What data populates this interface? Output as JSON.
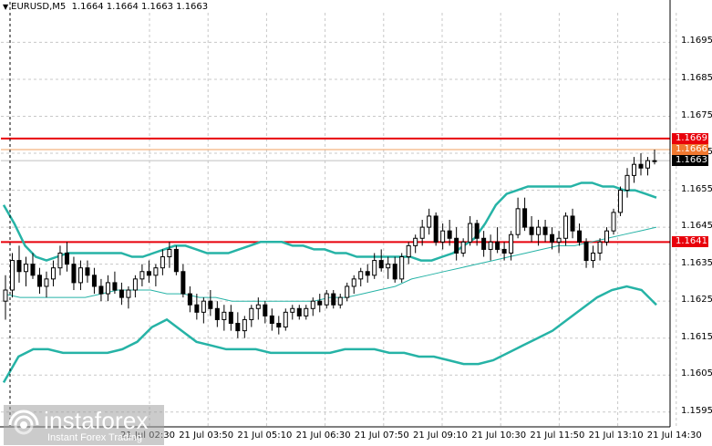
{
  "symbol": {
    "ticker": "EURUSD,M5",
    "ohlc": "1.1664 1.1664 1.1663 1.1663"
  },
  "price_axis": {
    "ticks": [
      "1.1695",
      "1.1685",
      "1.1675",
      "1.1665",
      "1.1655",
      "1.1645",
      "1.1635",
      "1.1625",
      "1.1615",
      "1.1605",
      "1.1595"
    ]
  },
  "time_axis": {
    "labels": [
      "21 Jul 02:30",
      "21 Jul 03:50",
      "21 Jul 05:10",
      "21 Jul 06:30",
      "21 Jul 07:50",
      "21 Jul 09:10",
      "21 Jul 10:30",
      "21 Jul 11:50",
      "21 Jul 13:10",
      "21 Jul 14:30"
    ]
  },
  "levels": [
    {
      "price": "1.1669",
      "color": "#e8000b",
      "label_bg": "#e8000b",
      "label_fg": "#ffffff"
    },
    {
      "price": "1.1666",
      "color": "#f0a060",
      "label_bg": "#f07830",
      "label_fg": "#ffffff"
    },
    {
      "price": "1.1663",
      "color": "#c0c0c0",
      "label_bg": "#000000",
      "label_fg": "#ffffff"
    },
    {
      "price": "1.1641",
      "color": "#e8000b",
      "label_bg": "#e8000b",
      "label_fg": "#ffffff"
    }
  ],
  "colors": {
    "candle": "#000000",
    "bollinger": "#26b3a6",
    "grid": "#c8c8c8"
  },
  "watermark": {
    "brand": "instaforex",
    "tagline": "Instant Forex Trading"
  },
  "chart_data": {
    "type": "candlestick",
    "symbol": "EURUSD",
    "timeframe": "M5",
    "y_range": [
      1.1591,
      1.1703
    ],
    "indicators": [
      "Bollinger Bands"
    ],
    "grid": true,
    "candles": [
      [
        1.1625,
        1.1632,
        1.162,
        1.1628
      ],
      [
        1.1628,
        1.1638,
        1.1626,
        1.1636
      ],
      [
        1.1636,
        1.164,
        1.163,
        1.1633
      ],
      [
        1.1633,
        1.1637,
        1.1629,
        1.1635
      ],
      [
        1.1635,
        1.1638,
        1.1631,
        1.1632
      ],
      [
        1.1632,
        1.1634,
        1.1627,
        1.1629
      ],
      [
        1.1629,
        1.1633,
        1.1626,
        1.1631
      ],
      [
        1.1631,
        1.1636,
        1.1629,
        1.1634
      ],
      [
        1.1634,
        1.164,
        1.1632,
        1.1638
      ],
      [
        1.1638,
        1.1641,
        1.1633,
        1.1635
      ],
      [
        1.1635,
        1.1637,
        1.1628,
        1.163
      ],
      [
        1.163,
        1.1636,
        1.1628,
        1.1634
      ],
      [
        1.1634,
        1.1636,
        1.163,
        1.1632
      ],
      [
        1.1632,
        1.1634,
        1.1627,
        1.1629
      ],
      [
        1.1629,
        1.1631,
        1.1625,
        1.1627
      ],
      [
        1.1627,
        1.1632,
        1.1625,
        1.163
      ],
      [
        1.163,
        1.1633,
        1.1627,
        1.1628
      ],
      [
        1.1628,
        1.163,
        1.1624,
        1.1626
      ],
      [
        1.1626,
        1.1629,
        1.1623,
        1.1628
      ],
      [
        1.1628,
        1.1632,
        1.1626,
        1.1631
      ],
      [
        1.1631,
        1.1635,
        1.1629,
        1.1633
      ],
      [
        1.1633,
        1.1636,
        1.163,
        1.1632
      ],
      [
        1.1632,
        1.1635,
        1.1629,
        1.1634
      ],
      [
        1.1634,
        1.1639,
        1.1632,
        1.1637
      ],
      [
        1.1637,
        1.1641,
        1.1634,
        1.1639
      ],
      [
        1.1639,
        1.164,
        1.1632,
        1.1633
      ],
      [
        1.1633,
        1.1635,
        1.1626,
        1.1627
      ],
      [
        1.1627,
        1.1629,
        1.1622,
        1.1624
      ],
      [
        1.1624,
        1.1627,
        1.162,
        1.1622
      ],
      [
        1.1622,
        1.1626,
        1.1619,
        1.1625
      ],
      [
        1.1625,
        1.1628,
        1.1621,
        1.1623
      ],
      [
        1.1623,
        1.1625,
        1.1618,
        1.162
      ],
      [
        1.162,
        1.1624,
        1.1617,
        1.1622
      ],
      [
        1.1622,
        1.1624,
        1.1617,
        1.1619
      ],
      [
        1.1619,
        1.1622,
        1.1615,
        1.1617
      ],
      [
        1.1617,
        1.1621,
        1.1615,
        1.162
      ],
      [
        1.162,
        1.1624,
        1.1618,
        1.1623
      ],
      [
        1.1623,
        1.1626,
        1.162,
        1.1624
      ],
      [
        1.1624,
        1.1625,
        1.1619,
        1.1621
      ],
      [
        1.1621,
        1.1623,
        1.1617,
        1.1619
      ],
      [
        1.1619,
        1.1621,
        1.1616,
        1.1618
      ],
      [
        1.1618,
        1.1623,
        1.1617,
        1.1622
      ],
      [
        1.1622,
        1.1624,
        1.162,
        1.1623
      ],
      [
        1.1623,
        1.1624,
        1.162,
        1.1621
      ],
      [
        1.1621,
        1.1624,
        1.162,
        1.1623
      ],
      [
        1.1623,
        1.1626,
        1.1621,
        1.1625
      ],
      [
        1.1625,
        1.1627,
        1.1622,
        1.1624
      ],
      [
        1.1624,
        1.1628,
        1.1623,
        1.1627
      ],
      [
        1.1627,
        1.1628,
        1.1623,
        1.1624
      ],
      [
        1.1624,
        1.1627,
        1.1623,
        1.1626
      ],
      [
        1.1626,
        1.163,
        1.1625,
        1.1629
      ],
      [
        1.1629,
        1.1632,
        1.1627,
        1.1631
      ],
      [
        1.1631,
        1.1634,
        1.1629,
        1.1633
      ],
      [
        1.1633,
        1.1635,
        1.163,
        1.1632
      ],
      [
        1.1632,
        1.1638,
        1.1631,
        1.1636
      ],
      [
        1.1636,
        1.1639,
        1.1633,
        1.1634
      ],
      [
        1.1634,
        1.1637,
        1.1631,
        1.1635
      ],
      [
        1.1635,
        1.1637,
        1.163,
        1.1631
      ],
      [
        1.1631,
        1.1638,
        1.163,
        1.1637
      ],
      [
        1.1637,
        1.1641,
        1.1635,
        1.164
      ],
      [
        1.164,
        1.1643,
        1.1638,
        1.1642
      ],
      [
        1.1642,
        1.1647,
        1.164,
        1.1645
      ],
      [
        1.1645,
        1.165,
        1.1643,
        1.1648
      ],
      [
        1.1648,
        1.1649,
        1.164,
        1.1641
      ],
      [
        1.1641,
        1.1646,
        1.1639,
        1.1644
      ],
      [
        1.1644,
        1.1647,
        1.164,
        1.1642
      ],
      [
        1.1642,
        1.1645,
        1.1636,
        1.1638
      ],
      [
        1.1638,
        1.1642,
        1.1637,
        1.1641
      ],
      [
        1.1641,
        1.1648,
        1.164,
        1.1646
      ],
      [
        1.1646,
        1.1647,
        1.164,
        1.1642
      ],
      [
        1.1642,
        1.1644,
        1.1637,
        1.1639
      ],
      [
        1.1639,
        1.1643,
        1.1636,
        1.1641
      ],
      [
        1.1641,
        1.1645,
        1.1638,
        1.1639
      ],
      [
        1.1639,
        1.1641,
        1.1636,
        1.1638
      ],
      [
        1.1638,
        1.1644,
        1.1636,
        1.1643
      ],
      [
        1.1643,
        1.1653,
        1.1642,
        1.165
      ],
      [
        1.165,
        1.1653,
        1.1644,
        1.1645
      ],
      [
        1.1645,
        1.1648,
        1.1641,
        1.1643
      ],
      [
        1.1643,
        1.1647,
        1.164,
        1.1645
      ],
      [
        1.1645,
        1.1647,
        1.1641,
        1.1643
      ],
      [
        1.1643,
        1.1645,
        1.1639,
        1.1641
      ],
      [
        1.1641,
        1.1644,
        1.1638,
        1.1642
      ],
      [
        1.1642,
        1.1649,
        1.164,
        1.1648
      ],
      [
        1.1648,
        1.165,
        1.1642,
        1.1644
      ],
      [
        1.1644,
        1.1646,
        1.164,
        1.1641
      ],
      [
        1.1641,
        1.1642,
        1.1634,
        1.1636
      ],
      [
        1.1636,
        1.164,
        1.1634,
        1.1638
      ],
      [
        1.1638,
        1.1642,
        1.1636,
        1.1641
      ],
      [
        1.1641,
        1.1645,
        1.164,
        1.1644
      ],
      [
        1.1644,
        1.165,
        1.1643,
        1.1649
      ],
      [
        1.1649,
        1.1656,
        1.1648,
        1.1655
      ],
      [
        1.1655,
        1.1661,
        1.1653,
        1.1659
      ],
      [
        1.1659,
        1.1664,
        1.1657,
        1.1662
      ],
      [
        1.1662,
        1.1665,
        1.1659,
        1.1661
      ],
      [
        1.1661,
        1.1664,
        1.1659,
        1.1663
      ],
      [
        1.1663,
        1.1666,
        1.1662,
        1.1663
      ]
    ],
    "bollinger_upper": [
      1.1651,
      1.1646,
      1.164,
      1.1637,
      1.1636,
      1.1637,
      1.1638,
      1.1638,
      1.1638,
      1.1638,
      1.1638,
      1.1638,
      1.1637,
      1.1637,
      1.1638,
      1.1639,
      1.164,
      1.164,
      1.1639,
      1.1638,
      1.1638,
      1.1638,
      1.1639,
      1.164,
      1.1641,
      1.1641,
      1.1641,
      1.164,
      1.164,
      1.1639,
      1.1639,
      1.1638,
      1.1638,
      1.1637,
      1.1637,
      1.1637,
      1.1637,
      1.1637,
      1.1637,
      1.1636,
      1.1636,
      1.1637,
      1.1638,
      1.164,
      1.1642,
      1.1646,
      1.1651,
      1.1654,
      1.1655,
      1.1656,
      1.1656,
      1.1656,
      1.1656,
      1.1656,
      1.1657,
      1.1657,
      1.1656,
      1.1656,
      1.1655,
      1.1655,
      1.1654,
      1.1653
    ],
    "bollinger_middle": [
      1.1627,
      1.1626,
      1.1626,
      1.1626,
      1.1626,
      1.1626,
      1.1627,
      1.1628,
      1.1628,
      1.1628,
      1.1627,
      1.1627,
      1.1626,
      1.1626,
      1.1625,
      1.1625,
      1.1625,
      1.1625,
      1.1625,
      1.1625,
      1.1626,
      1.1626,
      1.1627,
      1.1628,
      1.1629,
      1.1631,
      1.1632,
      1.1633,
      1.1634,
      1.1635,
      1.1636,
      1.1637,
      1.1638,
      1.1639,
      1.164,
      1.164,
      1.1641,
      1.1642,
      1.1643,
      1.1644,
      1.1645
    ],
    "bollinger_lower": [
      1.1603,
      1.161,
      1.1612,
      1.1612,
      1.1611,
      1.1611,
      1.1611,
      1.1611,
      1.1612,
      1.1614,
      1.1618,
      1.162,
      1.1617,
      1.1614,
      1.1613,
      1.1612,
      1.1612,
      1.1612,
      1.1611,
      1.1611,
      1.1611,
      1.1611,
      1.1611,
      1.1612,
      1.1612,
      1.1612,
      1.1611,
      1.1611,
      1.161,
      1.161,
      1.1609,
      1.1608,
      1.1608,
      1.1609,
      1.1611,
      1.1613,
      1.1615,
      1.1617,
      1.162,
      1.1623,
      1.1626,
      1.1628,
      1.1629,
      1.1628,
      1.1624
    ]
  }
}
